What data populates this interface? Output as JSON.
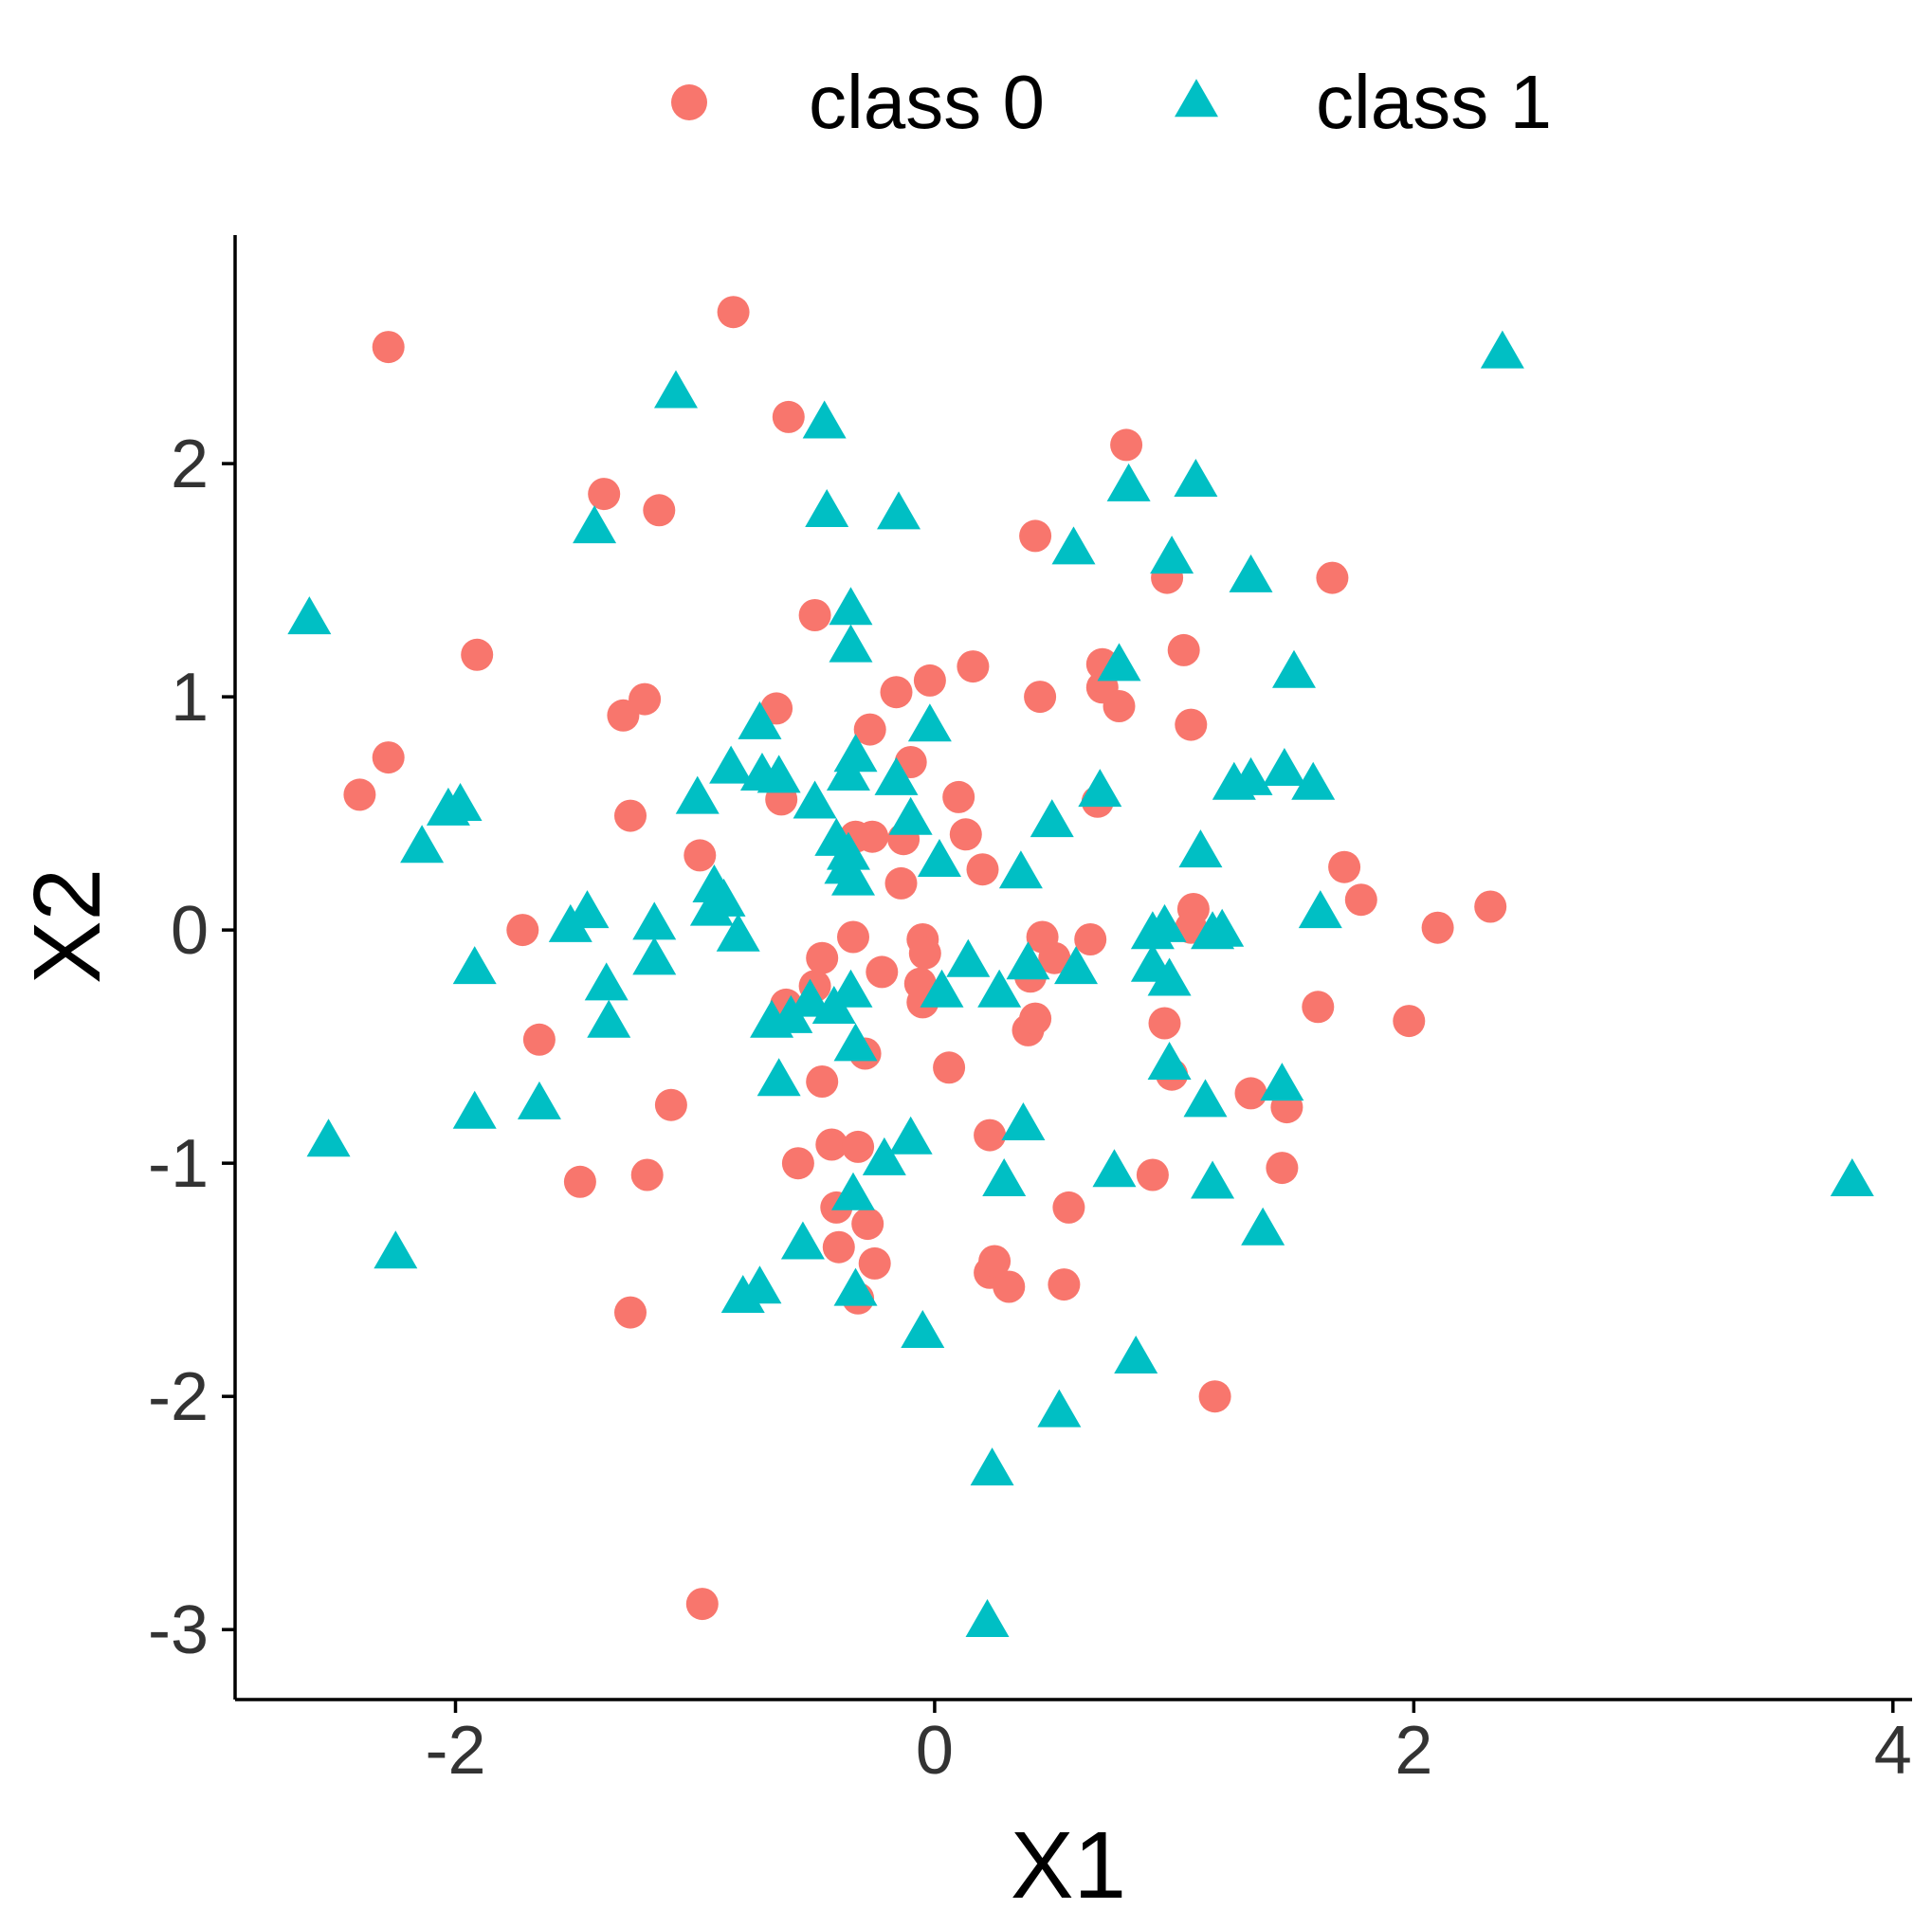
{
  "chart_data": {
    "type": "scatter",
    "title": "",
    "xlabel": "X1",
    "ylabel": "X2",
    "xlim": [
      -2.92,
      4.08
    ],
    "ylim": [
      -3.3,
      2.98
    ],
    "x_ticks": [
      -2,
      0,
      2,
      4
    ],
    "y_ticks": [
      -3,
      -2,
      -1,
      0,
      1,
      2
    ],
    "grid": false,
    "legend_position": "top",
    "series": [
      {
        "name": "class 0",
        "marker": "circle",
        "color": "#F8766D",
        "points": [
          [
            -2.28,
            2.5
          ],
          [
            -0.84,
            2.65
          ],
          [
            -0.61,
            2.2
          ],
          [
            -1.38,
            1.87
          ],
          [
            -1.15,
            1.8
          ],
          [
            0.8,
            2.08
          ],
          [
            0.42,
            1.69
          ],
          [
            1.66,
            1.51
          ],
          [
            -1.91,
            1.18
          ],
          [
            -0.5,
            1.35
          ],
          [
            -2.28,
            0.74
          ],
          [
            -2.4,
            0.58
          ],
          [
            -1.27,
            0.49
          ],
          [
            -1.3,
            0.92
          ],
          [
            -1.21,
            0.99
          ],
          [
            -0.66,
            0.95
          ],
          [
            -0.27,
            0.86
          ],
          [
            -0.16,
            1.02
          ],
          [
            -0.02,
            1.07
          ],
          [
            0.16,
            1.13
          ],
          [
            0.44,
            1.0
          ],
          [
            0.7,
            1.14
          ],
          [
            0.7,
            1.04
          ],
          [
            0.77,
            0.96
          ],
          [
            0.97,
            1.51
          ],
          [
            1.04,
            1.2
          ],
          [
            1.07,
            0.88
          ],
          [
            -0.98,
            0.32
          ],
          [
            -0.64,
            0.56
          ],
          [
            -0.33,
            0.4
          ],
          [
            -0.26,
            0.4
          ],
          [
            -0.13,
            0.39
          ],
          [
            -0.1,
            0.72
          ],
          [
            0.1,
            0.57
          ],
          [
            0.13,
            0.41
          ],
          [
            0.2,
            0.26
          ],
          [
            0.68,
            0.55
          ],
          [
            -0.14,
            0.2
          ],
          [
            -1.72,
            0.0
          ],
          [
            -1.65,
            -0.47
          ],
          [
            -1.1,
            -0.75
          ],
          [
            -0.62,
            -0.32
          ],
          [
            -0.5,
            -0.24
          ],
          [
            -0.47,
            -0.12
          ],
          [
            -0.34,
            -0.03
          ],
          [
            -0.22,
            -0.18
          ],
          [
            -0.05,
            -0.04
          ],
          [
            -0.04,
            -0.1
          ],
          [
            -0.06,
            -0.23
          ],
          [
            -0.05,
            -0.31
          ],
          [
            0.45,
            -0.03
          ],
          [
            0.5,
            -0.12
          ],
          [
            0.4,
            -0.2
          ],
          [
            0.39,
            -0.43
          ],
          [
            0.42,
            -0.38
          ],
          [
            0.65,
            -0.04
          ],
          [
            1.08,
            0.09
          ],
          [
            1.07,
            0.01
          ],
          [
            0.96,
            -0.4
          ],
          [
            0.99,
            -0.62
          ],
          [
            1.32,
            -0.7
          ],
          [
            1.47,
            -0.76
          ],
          [
            1.45,
            -1.02
          ],
          [
            1.6,
            -0.33
          ],
          [
            1.71,
            0.27
          ],
          [
            1.78,
            0.13
          ],
          [
            2.1,
            0.01
          ],
          [
            2.32,
            0.1
          ],
          [
            1.98,
            -0.39
          ],
          [
            -0.47,
            -0.65
          ],
          [
            -0.29,
            -0.53
          ],
          [
            0.06,
            -0.59
          ],
          [
            0.23,
            -0.88
          ],
          [
            -1.48,
            -1.08
          ],
          [
            -1.2,
            -1.05
          ],
          [
            -0.57,
            -1.0
          ],
          [
            -0.43,
            -0.92
          ],
          [
            -0.32,
            -0.93
          ],
          [
            -0.41,
            -1.19
          ],
          [
            -0.28,
            -1.26
          ],
          [
            -0.4,
            -1.36
          ],
          [
            -0.25,
            -1.43
          ],
          [
            -0.32,
            -1.58
          ],
          [
            0.23,
            -1.47
          ],
          [
            0.25,
            -1.42
          ],
          [
            0.31,
            -1.53
          ],
          [
            0.56,
            -1.19
          ],
          [
            0.54,
            -1.52
          ],
          [
            0.91,
            -1.05
          ],
          [
            1.17,
            -2.0
          ],
          [
            -1.27,
            -1.64
          ],
          [
            -0.97,
            -2.89
          ]
        ]
      },
      {
        "name": "class 1",
        "marker": "triangle",
        "color": "#00BFC4",
        "points": [
          [
            -1.08,
            2.3
          ],
          [
            -0.46,
            2.17
          ],
          [
            -0.45,
            1.79
          ],
          [
            -0.15,
            1.78
          ],
          [
            -1.42,
            1.72
          ],
          [
            -2.61,
            1.33
          ],
          [
            -0.35,
            1.37
          ],
          [
            -0.35,
            1.21
          ],
          [
            0.58,
            1.63
          ],
          [
            0.81,
            1.9
          ],
          [
            1.09,
            1.92
          ],
          [
            0.99,
            1.59
          ],
          [
            1.32,
            1.51
          ],
          [
            0.77,
            1.13
          ],
          [
            1.5,
            1.1
          ],
          [
            -0.73,
            0.88
          ],
          [
            -0.85,
            0.69
          ],
          [
            -0.72,
            0.66
          ],
          [
            -0.65,
            0.65
          ],
          [
            -0.99,
            0.56
          ],
          [
            -0.5,
            0.54
          ],
          [
            -0.36,
            0.66
          ],
          [
            -0.33,
            0.74
          ],
          [
            -0.16,
            0.64
          ],
          [
            -0.1,
            0.47
          ],
          [
            -0.02,
            0.87
          ],
          [
            0.02,
            0.29
          ],
          [
            0.49,
            0.46
          ],
          [
            0.69,
            0.59
          ],
          [
            -2.03,
            0.51
          ],
          [
            -1.98,
            0.53
          ],
          [
            -2.14,
            0.35
          ],
          [
            -0.41,
            0.38
          ],
          [
            -0.37,
            0.26
          ],
          [
            -0.34,
            0.21
          ],
          [
            -0.36,
            0.32
          ],
          [
            0.36,
            0.24
          ],
          [
            1.11,
            0.33
          ],
          [
            1.25,
            0.62
          ],
          [
            1.32,
            0.64
          ],
          [
            1.46,
            0.68
          ],
          [
            1.58,
            0.62
          ],
          [
            1.61,
            0.07
          ],
          [
            -1.52,
            0.01
          ],
          [
            -1.45,
            0.07
          ],
          [
            -1.17,
            0.02
          ],
          [
            -0.93,
            0.08
          ],
          [
            -0.92,
            0.18
          ],
          [
            -0.88,
            0.12
          ],
          [
            -0.82,
            -0.03
          ],
          [
            -1.92,
            -0.17
          ],
          [
            -1.37,
            -0.24
          ],
          [
            -1.17,
            -0.13
          ],
          [
            -1.36,
            -0.4
          ],
          [
            -0.68,
            -0.4
          ],
          [
            -0.6,
            -0.38
          ],
          [
            -0.52,
            -0.31
          ],
          [
            -0.42,
            -0.34
          ],
          [
            -0.35,
            -0.27
          ],
          [
            -0.33,
            -0.5
          ],
          [
            0.03,
            -0.27
          ],
          [
            0.14,
            -0.14
          ],
          [
            0.27,
            -0.27
          ],
          [
            0.39,
            -0.15
          ],
          [
            0.59,
            -0.17
          ],
          [
            0.91,
            -0.02
          ],
          [
            0.96,
            0.01
          ],
          [
            1.16,
            -0.02
          ],
          [
            1.2,
            -0.01
          ],
          [
            0.91,
            -0.16
          ],
          [
            0.98,
            -0.22
          ],
          [
            0.98,
            -0.58
          ],
          [
            1.13,
            -0.74
          ],
          [
            1.45,
            -0.67
          ],
          [
            -1.92,
            -0.79
          ],
          [
            -1.65,
            -0.75
          ],
          [
            -0.65,
            -0.65
          ],
          [
            -0.21,
            -0.99
          ],
          [
            -0.1,
            -0.9
          ],
          [
            0.37,
            -0.84
          ],
          [
            -2.53,
            -0.91
          ],
          [
            -2.25,
            -1.39
          ],
          [
            -0.34,
            -1.14
          ],
          [
            0.29,
            -1.08
          ],
          [
            0.75,
            -1.04
          ],
          [
            1.16,
            -1.09
          ],
          [
            1.37,
            -1.29
          ],
          [
            -0.55,
            -1.35
          ],
          [
            -0.33,
            -1.55
          ],
          [
            -0.73,
            -1.54
          ],
          [
            -0.8,
            -1.58
          ],
          [
            -0.05,
            -1.73
          ],
          [
            0.84,
            -1.84
          ],
          [
            0.52,
            -2.07
          ],
          [
            0.24,
            -2.32
          ],
          [
            0.22,
            -2.97
          ],
          [
            2.37,
            2.47
          ],
          [
            3.83,
            -1.08
          ]
        ]
      }
    ]
  }
}
